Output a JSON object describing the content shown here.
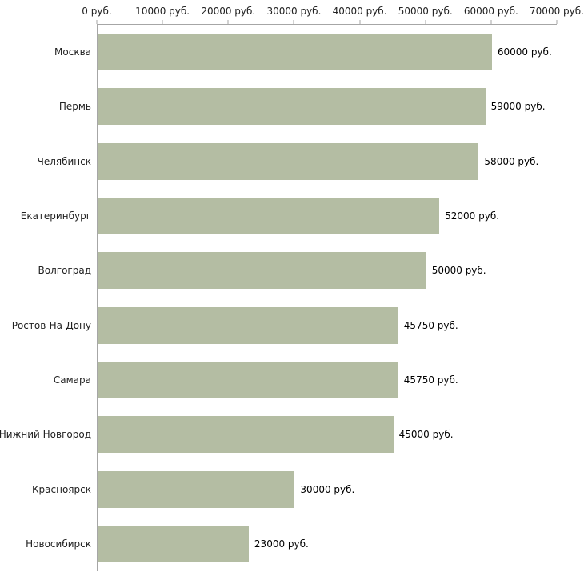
{
  "chart_data": {
    "type": "bar",
    "orientation": "horizontal",
    "title": "",
    "xlabel": "",
    "ylabel": "",
    "xlim": [
      0,
      70000
    ],
    "grid": false,
    "legend": null,
    "bar_color": "#b4bda3",
    "axis_color": "#a6a6a6",
    "categories": [
      "Москва",
      "Пермь",
      "Челябинск",
      "Екатеринбург",
      "Волгоград",
      "Ростов-На-Дону",
      "Самара",
      "Нижний Новгород",
      "Красноярск",
      "Новосибирск"
    ],
    "values": [
      60000,
      59000,
      58000,
      52000,
      50000,
      45750,
      45750,
      45000,
      30000,
      23000
    ],
    "value_labels": [
      "60000 руб.",
      "59000 руб.",
      "58000 руб.",
      "52000 руб.",
      "50000 руб.",
      "45750 руб.",
      "45750 руб.",
      "45000 руб.",
      "30000 руб.",
      "23000 руб."
    ],
    "x_ticks": [
      0,
      10000,
      20000,
      30000,
      40000,
      50000,
      60000,
      70000
    ],
    "x_tick_labels": [
      "0 руб.",
      "10000 руб.",
      "20000 руб.",
      "30000 руб.",
      "40000 руб.",
      "50000 руб.",
      "60000 руб.",
      "70000 руб."
    ]
  }
}
